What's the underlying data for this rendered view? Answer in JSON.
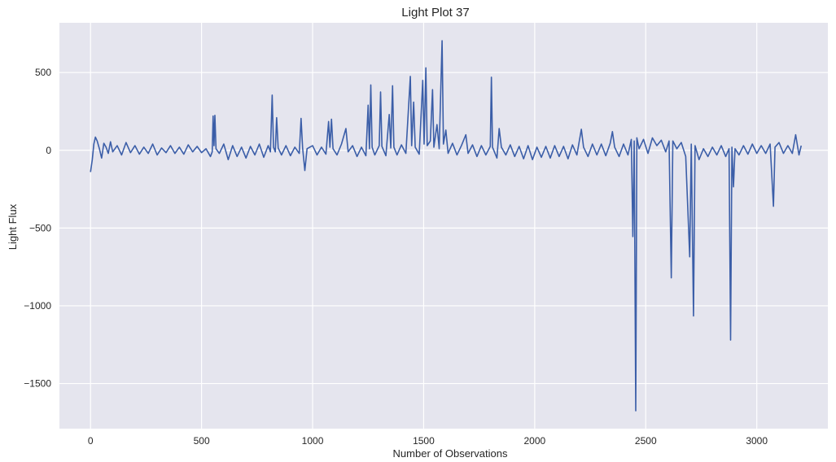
{
  "chart_data": {
    "type": "line",
    "title": "Light Plot 37",
    "xlabel": "Number of Observations",
    "ylabel": "Light Flux",
    "xlim": [
      -140,
      3320
    ],
    "ylim": [
      -1790,
      820
    ],
    "x_ticks": [
      0,
      500,
      1000,
      1500,
      2000,
      2500,
      3000
    ],
    "y_ticks": [
      500,
      0,
      -500,
      -1000,
      -1500
    ],
    "grid": true,
    "legend": "none",
    "colors": {
      "background": "#e5e5ee",
      "grid": "#ffffff",
      "line": "#3b5ea8"
    },
    "series": [
      {
        "name": "",
        "points": [
          [
            0,
            -140
          ],
          [
            8,
            -60
          ],
          [
            15,
            40
          ],
          [
            22,
            85
          ],
          [
            30,
            60
          ],
          [
            40,
            10
          ],
          [
            50,
            -50
          ],
          [
            60,
            45
          ],
          [
            70,
            20
          ],
          [
            80,
            -20
          ],
          [
            90,
            55
          ],
          [
            100,
            -10
          ],
          [
            120,
            30
          ],
          [
            140,
            -30
          ],
          [
            160,
            50
          ],
          [
            180,
            -15
          ],
          [
            200,
            30
          ],
          [
            220,
            -25
          ],
          [
            240,
            20
          ],
          [
            260,
            -20
          ],
          [
            280,
            40
          ],
          [
            300,
            -30
          ],
          [
            320,
            15
          ],
          [
            340,
            -15
          ],
          [
            360,
            30
          ],
          [
            380,
            -20
          ],
          [
            400,
            20
          ],
          [
            420,
            -25
          ],
          [
            440,
            35
          ],
          [
            460,
            -10
          ],
          [
            480,
            25
          ],
          [
            500,
            -15
          ],
          [
            520,
            10
          ],
          [
            540,
            -40
          ],
          [
            548,
            -10
          ],
          [
            552,
            220
          ],
          [
            556,
            30
          ],
          [
            560,
            225
          ],
          [
            565,
            10
          ],
          [
            580,
            -20
          ],
          [
            600,
            40
          ],
          [
            620,
            -60
          ],
          [
            640,
            30
          ],
          [
            660,
            -40
          ],
          [
            680,
            20
          ],
          [
            700,
            -50
          ],
          [
            720,
            25
          ],
          [
            740,
            -30
          ],
          [
            760,
            40
          ],
          [
            780,
            -45
          ],
          [
            800,
            30
          ],
          [
            810,
            -10
          ],
          [
            818,
            355
          ],
          [
            824,
            20
          ],
          [
            832,
            -10
          ],
          [
            838,
            210
          ],
          [
            845,
            15
          ],
          [
            860,
            -30
          ],
          [
            880,
            30
          ],
          [
            900,
            -35
          ],
          [
            920,
            20
          ],
          [
            940,
            -20
          ],
          [
            948,
            205
          ],
          [
            955,
            15
          ],
          [
            965,
            -130
          ],
          [
            975,
            10
          ],
          [
            1000,
            30
          ],
          [
            1020,
            -30
          ],
          [
            1040,
            20
          ],
          [
            1060,
            -25
          ],
          [
            1072,
            185
          ],
          [
            1078,
            20
          ],
          [
            1085,
            200
          ],
          [
            1092,
            10
          ],
          [
            1110,
            -30
          ],
          [
            1130,
            40
          ],
          [
            1150,
            140
          ],
          [
            1160,
            -10
          ],
          [
            1180,
            30
          ],
          [
            1200,
            -40
          ],
          [
            1220,
            20
          ],
          [
            1240,
            -35
          ],
          [
            1250,
            290
          ],
          [
            1256,
            10
          ],
          [
            1262,
            420
          ],
          [
            1268,
            20
          ],
          [
            1280,
            -30
          ],
          [
            1300,
            30
          ],
          [
            1306,
            375
          ],
          [
            1312,
            25
          ],
          [
            1330,
            -35
          ],
          [
            1345,
            230
          ],
          [
            1352,
            15
          ],
          [
            1360,
            415
          ],
          [
            1366,
            20
          ],
          [
            1380,
            -30
          ],
          [
            1400,
            35
          ],
          [
            1420,
            -20
          ],
          [
            1440,
            475
          ],
          [
            1446,
            30
          ],
          [
            1455,
            310
          ],
          [
            1462,
            20
          ],
          [
            1480,
            -25
          ],
          [
            1496,
            450
          ],
          [
            1502,
            40
          ],
          [
            1510,
            530
          ],
          [
            1516,
            30
          ],
          [
            1530,
            60
          ],
          [
            1540,
            390
          ],
          [
            1546,
            20
          ],
          [
            1560,
            165
          ],
          [
            1570,
            10
          ],
          [
            1583,
            705
          ],
          [
            1589,
            40
          ],
          [
            1600,
            130
          ],
          [
            1610,
            -20
          ],
          [
            1630,
            45
          ],
          [
            1650,
            -30
          ],
          [
            1670,
            30
          ],
          [
            1690,
            100
          ],
          [
            1700,
            -20
          ],
          [
            1720,
            35
          ],
          [
            1740,
            -40
          ],
          [
            1760,
            30
          ],
          [
            1780,
            -30
          ],
          [
            1800,
            25
          ],
          [
            1805,
            470
          ],
          [
            1810,
            20
          ],
          [
            1830,
            -50
          ],
          [
            1840,
            140
          ],
          [
            1850,
            20
          ],
          [
            1870,
            -30
          ],
          [
            1890,
            35
          ],
          [
            1910,
            -40
          ],
          [
            1930,
            25
          ],
          [
            1950,
            -55
          ],
          [
            1970,
            30
          ],
          [
            1990,
            -60
          ],
          [
            2010,
            20
          ],
          [
            2030,
            -45
          ],
          [
            2050,
            25
          ],
          [
            2070,
            -50
          ],
          [
            2090,
            30
          ],
          [
            2110,
            -40
          ],
          [
            2130,
            25
          ],
          [
            2150,
            -55
          ],
          [
            2170,
            35
          ],
          [
            2190,
            -30
          ],
          [
            2210,
            135
          ],
          [
            2220,
            20
          ],
          [
            2240,
            -40
          ],
          [
            2260,
            40
          ],
          [
            2280,
            -30
          ],
          [
            2300,
            40
          ],
          [
            2320,
            -35
          ],
          [
            2340,
            45
          ],
          [
            2350,
            120
          ],
          [
            2360,
            20
          ],
          [
            2380,
            -40
          ],
          [
            2400,
            40
          ],
          [
            2420,
            -30
          ],
          [
            2435,
            70
          ],
          [
            2442,
            -555
          ],
          [
            2448,
            60
          ],
          [
            2455,
            -1675
          ],
          [
            2460,
            80
          ],
          [
            2470,
            10
          ],
          [
            2490,
            70
          ],
          [
            2510,
            -20
          ],
          [
            2530,
            80
          ],
          [
            2550,
            30
          ],
          [
            2570,
            65
          ],
          [
            2590,
            -10
          ],
          [
            2605,
            60
          ],
          [
            2615,
            -820
          ],
          [
            2622,
            60
          ],
          [
            2640,
            10
          ],
          [
            2660,
            50
          ],
          [
            2680,
            -40
          ],
          [
            2698,
            -685
          ],
          [
            2705,
            40
          ],
          [
            2715,
            -1065
          ],
          [
            2722,
            30
          ],
          [
            2740,
            -60
          ],
          [
            2760,
            10
          ],
          [
            2780,
            -40
          ],
          [
            2800,
            20
          ],
          [
            2820,
            -30
          ],
          [
            2840,
            30
          ],
          [
            2860,
            -40
          ],
          [
            2875,
            10
          ],
          [
            2882,
            -1220
          ],
          [
            2888,
            20
          ],
          [
            2895,
            -235
          ],
          [
            2902,
            10
          ],
          [
            2920,
            -30
          ],
          [
            2940,
            30
          ],
          [
            2960,
            -25
          ],
          [
            2980,
            40
          ],
          [
            3000,
            -20
          ],
          [
            3020,
            30
          ],
          [
            3040,
            -20
          ],
          [
            3060,
            40
          ],
          [
            3075,
            -360
          ],
          [
            3082,
            20
          ],
          [
            3100,
            50
          ],
          [
            3120,
            -20
          ],
          [
            3140,
            30
          ],
          [
            3160,
            -20
          ],
          [
            3175,
            100
          ],
          [
            3190,
            -30
          ],
          [
            3200,
            30
          ]
        ]
      }
    ]
  }
}
